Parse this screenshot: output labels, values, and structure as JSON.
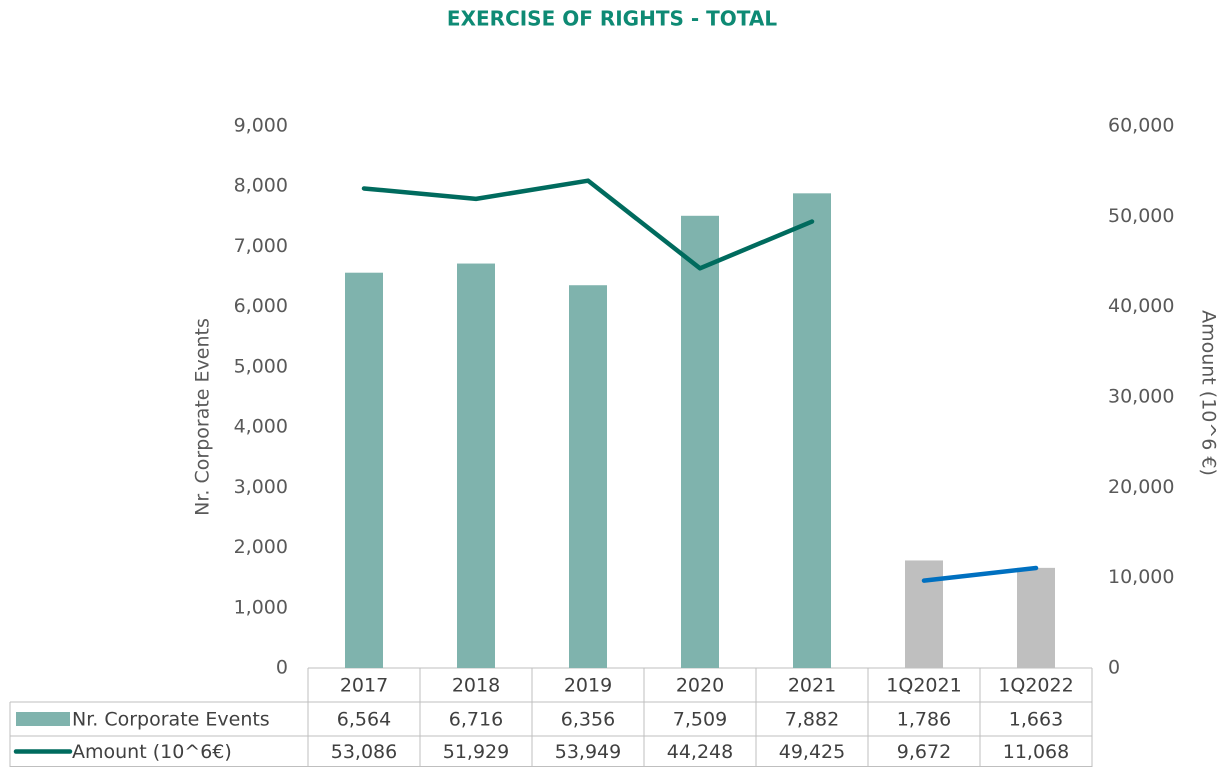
{
  "chart_data": {
    "type": "bar-line",
    "title": "EXERCISE OF RIGHTS - TOTAL",
    "y_label": "Nr. Corporate Events",
    "y2_label": "Amount (10^6 €)",
    "categories": [
      "2017",
      "2018",
      "2019",
      "2020",
      "2021",
      "1Q2021",
      "1Q2022"
    ],
    "series": [
      {
        "name": "Nr. Corporate Events",
        "type": "bar",
        "color": "#7fb3ad",
        "colors": [
          "#7fb3ad",
          "#7fb3ad",
          "#7fb3ad",
          "#7fb3ad",
          "#7fb3ad",
          "#bfbfbf",
          "#bfbfbf"
        ],
        "values": [
          6564,
          6716,
          6356,
          7509,
          7882,
          1786,
          1663
        ],
        "value_labels": [
          "6,564",
          "6,716",
          "6,356",
          "7,509",
          "7,882",
          "1,786",
          "1,663"
        ]
      },
      {
        "name": "Amount (10^6€)",
        "type": "line",
        "axis": "y2",
        "color": "#006b5e",
        "colors": [
          "#006b5e",
          "#006b5e",
          "#006b5e",
          "#006b5e",
          "#006b5e",
          "#0070c0",
          "#0070c0"
        ],
        "values": [
          53086,
          51929,
          53949,
          44248,
          49425,
          9672,
          11068
        ],
        "value_labels": [
          "53,086",
          "51,929",
          "53,949",
          "44,248",
          "49,425",
          "9,672",
          "11,068"
        ]
      }
    ],
    "ylim": [
      0,
      9000
    ],
    "yticks": [
      0,
      {
        "value": 1000,
        "label": "1,000"
      },
      {
        "value": 2000,
        "label": "2,000"
      },
      {
        "value": 3000,
        "label": "3,000"
      },
      {
        "value": 4000,
        "label": "4,000"
      },
      {
        "value": 5000,
        "label": "5,000"
      },
      {
        "value": 6000,
        "label": "6,000"
      },
      {
        "value": 7000,
        "label": "7,000"
      },
      {
        "value": 8000,
        "label": "8,000"
      },
      {
        "value": 9000,
        "label": "9,000"
      }
    ],
    "y2lim": [
      0,
      60000
    ],
    "y2ticks": [
      0,
      {
        "value": 10000,
        "label": "10,000"
      },
      {
        "value": 20000,
        "label": "20,000"
      },
      {
        "value": 30000,
        "label": "30,000"
      },
      {
        "value": 40000,
        "label": "40,000"
      },
      {
        "value": 50000,
        "label": "50,000"
      },
      {
        "value": 60000,
        "label": "60,000"
      }
    ],
    "grid": false
  }
}
